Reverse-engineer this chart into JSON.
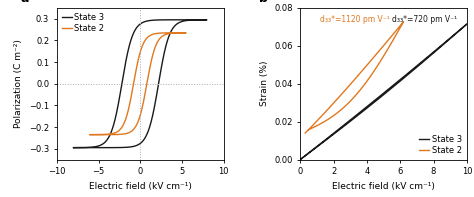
{
  "panel_a": {
    "title": "a",
    "xlabel": "Electric field (kV cm⁻¹)",
    "ylabel": "Polarization (C m⁻²)",
    "xlim": [
      -10,
      10
    ],
    "ylim": [
      -0.35,
      0.35
    ],
    "xticks": [
      -10,
      -5,
      0,
      5,
      10
    ],
    "yticks": [
      -0.3,
      -0.2,
      -0.1,
      0.0,
      0.1,
      0.2,
      0.3
    ],
    "state3_color": "#1a1a1a",
    "state2_color": "#e07820",
    "legend_labels": [
      "State 3",
      "State 2"
    ],
    "grid_color": "#aaaaaa",
    "grid_style": ":"
  },
  "panel_b": {
    "title": "b",
    "xlabel": "Electric field (kV cm⁻¹)",
    "ylabel": "Strain (%)",
    "xlim": [
      0,
      10
    ],
    "ylim": [
      0.0,
      0.08
    ],
    "xticks": [
      0,
      2,
      4,
      6,
      8,
      10
    ],
    "yticks": [
      0.0,
      0.02,
      0.04,
      0.06,
      0.08
    ],
    "state3_color": "#1a1a1a",
    "state2_color": "#e07820",
    "legend_labels": [
      "State 3",
      "State 2"
    ],
    "annotation1": "d₃₃*=1120 pm V⁻¹",
    "annotation2": "d₃₃*=720 pm V⁻¹"
  }
}
